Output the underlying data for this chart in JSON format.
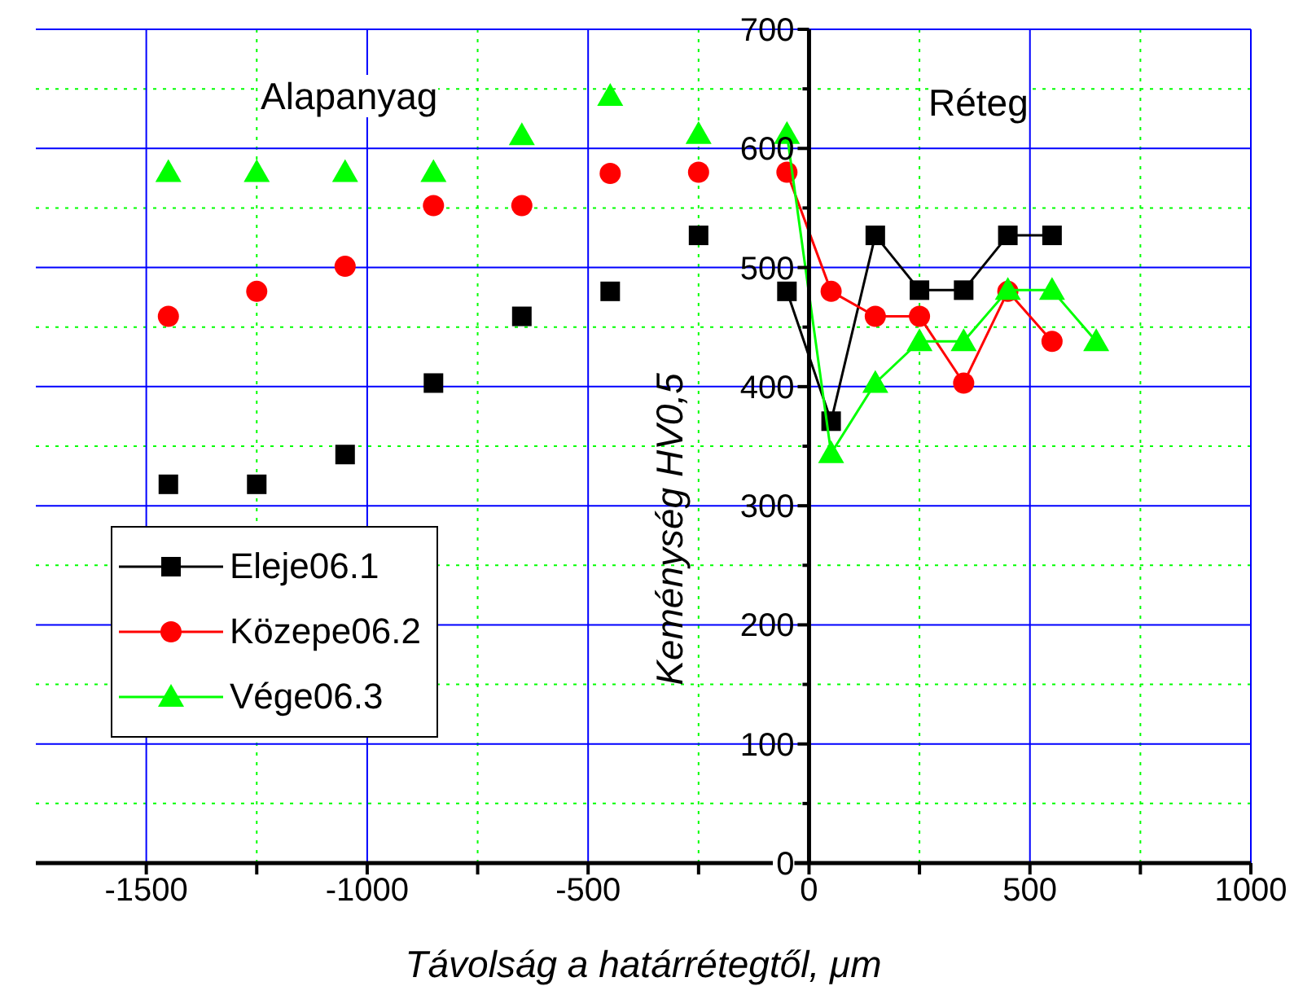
{
  "chart_data": {
    "type": "scatter",
    "xlabel": "Távolság a határrétegtől, μm",
    "ylabel": "Keménység HV0,5",
    "annotations": [
      "Alapanyag",
      "Réteg"
    ],
    "xlim": [
      -1750,
      1000
    ],
    "xticks": [
      -1500,
      {
        "value": -1250,
        "label": null
      },
      -1000,
      {
        "value": -750,
        "label": null
      },
      -500,
      {
        "value": -250,
        "label": null
      },
      0,
      {
        "value": 250,
        "label": null
      },
      500,
      {
        "value": 750,
        "label": null
      },
      1000
    ],
    "ylim": [
      0,
      700
    ],
    "yticks": [
      0,
      {
        "value": 50,
        "label": null
      },
      100,
      {
        "value": 150,
        "label": null
      },
      200,
      {
        "value": 250,
        "label": null
      },
      300,
      {
        "value": 350,
        "label": null
      },
      400,
      {
        "value": 450,
        "label": null
      },
      500,
      {
        "value": 550,
        "label": null
      },
      600,
      {
        "value": 650,
        "label": null
      },
      700
    ],
    "grid": true,
    "legend": "bottom left",
    "series": [
      {
        "color": "#000000",
        "marker": "square",
        "x": [
          -1450,
          -1250,
          -1050,
          -850,
          -650,
          -450,
          -250
        ],
        "values": [
          318,
          318,
          343,
          403,
          459,
          480,
          527
        ]
      },
      {
        "color": "#ff0000",
        "marker": "circle",
        "x": [
          -1450,
          -1250,
          -1050,
          -850,
          -650,
          -450,
          -250
        ],
        "values": [
          459,
          480,
          501,
          552,
          552,
          579,
          580
        ]
      },
      {
        "color": "#00ff00",
        "marker": "triangle",
        "x": [
          -1450,
          -1250,
          -1050,
          -850,
          -650,
          -450,
          -250
        ],
        "values": [
          580,
          580,
          580,
          580,
          611,
          644,
          612
        ]
      },
      {
        "type": "line",
        "name": "Eleje06.1",
        "color": "#000000",
        "marker": "square",
        "x": [
          -50,
          50,
          150,
          250,
          350,
          450,
          550
        ],
        "values": [
          480,
          371,
          527,
          481,
          481,
          527,
          527
        ]
      },
      {
        "type": "line",
        "name": "Közepe06.2",
        "color": "#ff0000",
        "marker": "circle",
        "x": [
          -50,
          50,
          150,
          250,
          350,
          450,
          550
        ],
        "values": [
          580,
          480,
          459,
          459,
          403,
          480,
          438
        ]
      },
      {
        "type": "line",
        "name": "Vége06.3",
        "color": "#00ff00",
        "marker": "triangle",
        "x": [
          -50,
          50,
          150,
          250,
          350,
          450,
          550,
          650
        ],
        "values": [
          612,
          344,
          403,
          438,
          438,
          481,
          481,
          438
        ]
      }
    ]
  }
}
